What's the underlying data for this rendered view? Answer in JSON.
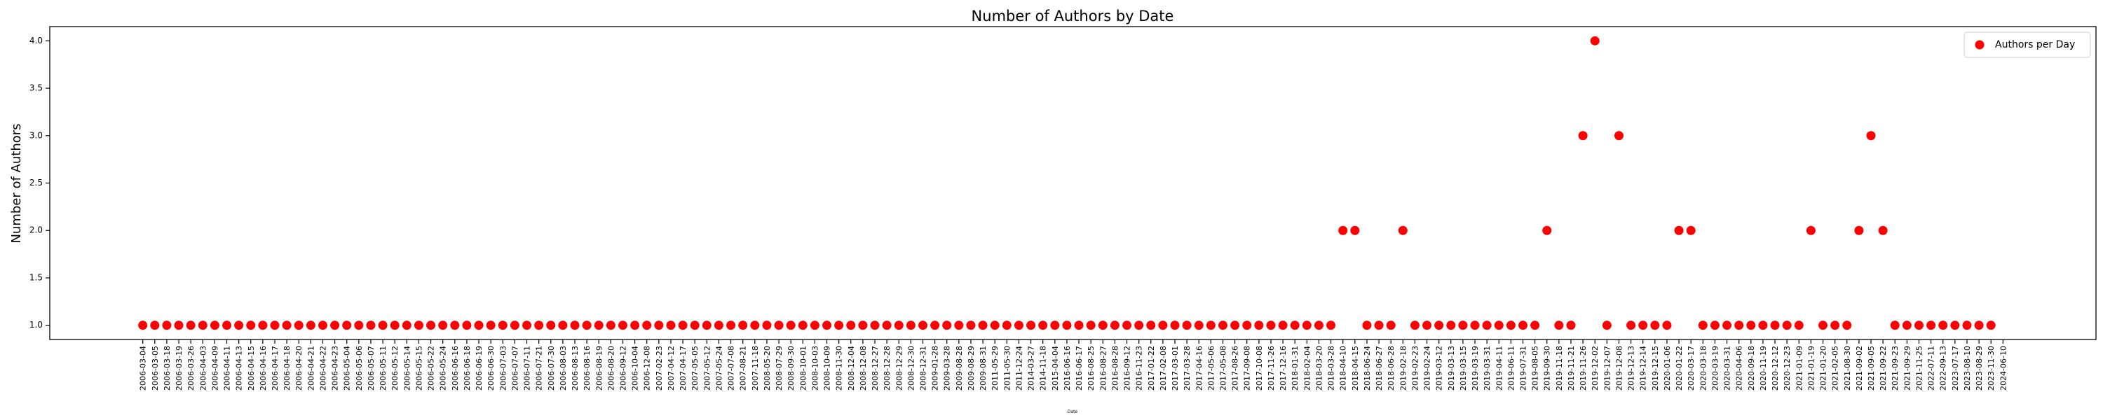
{
  "chart_data": {
    "type": "scatter",
    "title": "Number of Authors by Date",
    "xlabel": "Date",
    "ylabel": "Number of Authors",
    "categories": [
      "2006-03-04",
      "2006-03-05",
      "2006-03-18",
      "2006-03-19",
      "2006-03-26",
      "2006-04-03",
      "2006-04-09",
      "2006-04-11",
      "2006-04-13",
      "2006-04-15",
      "2006-04-16",
      "2006-04-17",
      "2006-04-18",
      "2006-04-20",
      "2006-04-21",
      "2006-04-22",
      "2006-04-23",
      "2006-05-04",
      "2006-05-06",
      "2006-05-07",
      "2006-05-11",
      "2006-05-12",
      "2006-05-14",
      "2006-05-15",
      "2006-05-22",
      "2006-05-24",
      "2006-06-16",
      "2006-06-18",
      "2006-06-19",
      "2006-06-30",
      "2006-07-03",
      "2006-07-07",
      "2006-07-11",
      "2006-07-21",
      "2006-07-30",
      "2006-08-03",
      "2006-08-13",
      "2006-08-16",
      "2006-08-19",
      "2006-08-20",
      "2006-09-12",
      "2006-10-04",
      "2006-12-08",
      "2007-02-23",
      "2007-04-12",
      "2007-04-17",
      "2007-05-05",
      "2007-05-12",
      "2007-05-24",
      "2007-07-08",
      "2007-08-21",
      "2007-11-18",
      "2008-05-20",
      "2008-07-29",
      "2008-09-30",
      "2008-10-01",
      "2008-10-03",
      "2008-10-09",
      "2008-11-30",
      "2008-12-04",
      "2008-12-08",
      "2008-12-27",
      "2008-12-28",
      "2008-12-29",
      "2008-12-30",
      "2008-12-31",
      "2009-01-28",
      "2009-03-28",
      "2009-08-28",
      "2009-08-29",
      "2009-08-31",
      "2011-05-29",
      "2011-05-30",
      "2011-12-24",
      "2014-03-27",
      "2014-11-18",
      "2015-04-04",
      "2016-06-16",
      "2016-06-17",
      "2016-08-25",
      "2016-08-27",
      "2016-08-28",
      "2016-09-12",
      "2016-11-23",
      "2017-01-22",
      "2017-02-08",
      "2017-03-01",
      "2017-03-28",
      "2017-04-16",
      "2017-05-06",
      "2017-05-08",
      "2017-08-26",
      "2017-09-08",
      "2017-10-08",
      "2017-11-26",
      "2017-12-16",
      "2018-01-31",
      "2018-02-04",
      "2018-03-20",
      "2018-03-28",
      "2018-04-10",
      "2018-04-15",
      "2018-06-24",
      "2018-06-27",
      "2018-06-28",
      "2019-02-18",
      "2019-02-23",
      "2019-02-24",
      "2019-03-12",
      "2019-03-13",
      "2019-03-15",
      "2019-03-19",
      "2019-03-31",
      "2019-04-11",
      "2019-06-11",
      "2019-07-31",
      "2019-08-05",
      "2019-09-30",
      "2019-11-18",
      "2019-11-21",
      "2019-11-26",
      "2019-12-02",
      "2019-12-07",
      "2019-12-08",
      "2019-12-13",
      "2019-12-14",
      "2019-12-15",
      "2020-01-06",
      "2020-01-22",
      "2020-03-17",
      "2020-03-18",
      "2020-03-19",
      "2020-03-31",
      "2020-04-06",
      "2020-09-18",
      "2020-11-19",
      "2020-12-12",
      "2020-12-23",
      "2021-01-09",
      "2021-01-19",
      "2021-01-20",
      "2021-02-05",
      "2021-08-30",
      "2021-09-02",
      "2021-09-05",
      "2021-09-22",
      "2021-09-23",
      "2021-09-29",
      "2021-11-25",
      "2022-07-11",
      "2022-09-13",
      "2023-07-17",
      "2023-08-10",
      "2023-08-29",
      "2023-11-30",
      "2024-06-10"
    ],
    "series": [
      {
        "name": "Authors per Day",
        "color": "#ff0000",
        "values": [
          1,
          1,
          1,
          1,
          1,
          1,
          1,
          1,
          1,
          1,
          1,
          1,
          1,
          1,
          1,
          1,
          1,
          1,
          1,
          1,
          1,
          1,
          1,
          1,
          1,
          1,
          1,
          1,
          1,
          1,
          1,
          1,
          1,
          1,
          1,
          1,
          1,
          1,
          1,
          1,
          1,
          1,
          1,
          1,
          1,
          1,
          1,
          1,
          1,
          1,
          1,
          1,
          1,
          1,
          1,
          1,
          1,
          1,
          1,
          1,
          1,
          1,
          1,
          1,
          1,
          1,
          1,
          1,
          1,
          1,
          1,
          1,
          1,
          1,
          1,
          1,
          1,
          1,
          1,
          1,
          1,
          1,
          1,
          1,
          1,
          1,
          1,
          1,
          1,
          1,
          1,
          1,
          1,
          1,
          1,
          1,
          1,
          1,
          1,
          1,
          2,
          2,
          1,
          1,
          1,
          2,
          1,
          1,
          1,
          1,
          1,
          1,
          1,
          1,
          1,
          1,
          1,
          2,
          1,
          1,
          3,
          4,
          1,
          3,
          1,
          1,
          1,
          1,
          2,
          2,
          1,
          1,
          1,
          1,
          1,
          1,
          1,
          1,
          1,
          2,
          1,
          1,
          1,
          2,
          3,
          2,
          1,
          1,
          1,
          1,
          1,
          1,
          1,
          1,
          1
        ]
      }
    ],
    "ylim": [
      0.85,
      4.15
    ],
    "yticks": [
      {
        "value": 1,
        "label": "1.0"
      },
      1.5,
      {
        "value": 2,
        "label": "2.0"
      },
      2.5,
      {
        "value": 3,
        "label": "3.0"
      },
      3.5,
      {
        "value": 4,
        "label": "4.0"
      }
    ],
    "legend": "upper right"
  }
}
